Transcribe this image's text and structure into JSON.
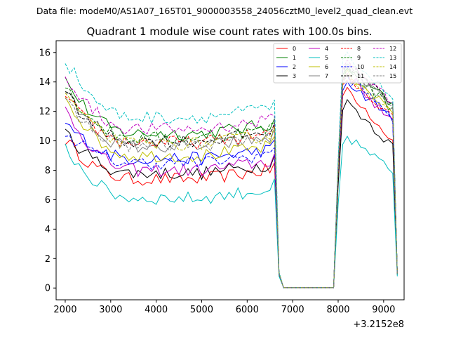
{
  "header": {
    "data_file": "Data file: modeM0/AS1A07_165T01_9000003558_24056cztM0_level2_quad_clean.evt"
  },
  "chart_data": {
    "type": "line",
    "title": "Quadrant 1 module wise count rates with 100.0s bins.",
    "xlabel": "",
    "ylabel": "",
    "x_offset_label": "+3.2152e8",
    "xlim": [
      1800,
      9450
    ],
    "ylim": [
      -0.8,
      16.8
    ],
    "x_ticks": [
      2000,
      3000,
      4000,
      5000,
      6000,
      7000,
      8000,
      9000
    ],
    "y_ticks": [
      0,
      2,
      4,
      6,
      8,
      10,
      12,
      14,
      16
    ],
    "legend_position": "top-right",
    "t_start": 2000,
    "t_step": 100,
    "series": [
      {
        "name": "0",
        "color": "#ff0000",
        "dash": "solid",
        "level": 7.4,
        "start": 10.1,
        "peak": 13.6,
        "end": 10.0,
        "fall": 1.0
      },
      {
        "name": "1",
        "color": "#008000",
        "dash": "solid",
        "level": 10.5,
        "start": 14.1,
        "peak": 15.0,
        "end": 12.4,
        "fall": 1.0
      },
      {
        "name": "2",
        "color": "#0000ff",
        "dash": "solid",
        "level": 8.8,
        "start": 11.2,
        "peak": 14.0,
        "end": 11.6,
        "fall": 1.0
      },
      {
        "name": "3",
        "color": "#000000",
        "dash": "solid",
        "level": 7.8,
        "start": 10.6,
        "peak": 12.7,
        "end": 9.6,
        "fall": 0.9
      },
      {
        "name": "4",
        "color": "#bf00bf",
        "dash": "solid",
        "level": 8.0,
        "start": 12.2,
        "peak": 14.6,
        "end": 11.2,
        "fall": 1.0
      },
      {
        "name": "5",
        "color": "#00bfbf",
        "dash": "solid",
        "level": 6.1,
        "start": 9.6,
        "peak": 10.3,
        "end": 7.9,
        "fall": 0.8
      },
      {
        "name": "6",
        "color": "#bfbf00",
        "dash": "solid",
        "level": 9.0,
        "start": 13.1,
        "peak": 14.7,
        "end": 12.0,
        "fall": 1.0
      },
      {
        "name": "7",
        "color": "#808080",
        "dash": "solid",
        "level": 9.6,
        "start": 13.4,
        "peak": 15.3,
        "end": 12.1,
        "fall": 1.0
      },
      {
        "name": "8",
        "color": "#ff0000",
        "dash": "dashed",
        "level": 9.9,
        "start": 13.0,
        "peak": 14.2,
        "end": 11.8,
        "fall": 1.0
      },
      {
        "name": "9",
        "color": "#008000",
        "dash": "dashed",
        "level": 10.2,
        "start": 13.7,
        "peak": 14.8,
        "end": 12.2,
        "fall": 1.0
      },
      {
        "name": "10",
        "color": "#0000ff",
        "dash": "dashed",
        "level": 8.5,
        "start": 10.6,
        "peak": 14.4,
        "end": 11.6,
        "fall": 1.0
      },
      {
        "name": "11",
        "color": "#000000",
        "dash": "dashed",
        "level": 10.0,
        "start": 13.2,
        "peak": 15.2,
        "end": 12.5,
        "fall": 1.0
      },
      {
        "name": "12",
        "color": "#bf00bf",
        "dash": "dashed",
        "level": 10.8,
        "start": 14.5,
        "peak": 15.4,
        "end": 12.6,
        "fall": 1.0
      },
      {
        "name": "13",
        "color": "#00bfbf",
        "dash": "dashed",
        "level": 11.6,
        "start": 15.5,
        "peak": 15.9,
        "end": 12.9,
        "fall": 1.1
      },
      {
        "name": "14",
        "color": "#bfbf00",
        "dash": "dashed",
        "level": 9.8,
        "start": 13.3,
        "peak": 14.5,
        "end": 12.0,
        "fall": 1.0
      },
      {
        "name": "15",
        "color": "#808080",
        "dash": "dashed",
        "level": 9.7,
        "start": 12.6,
        "peak": 15.0,
        "end": 12.2,
        "fall": 1.0
      }
    ]
  }
}
